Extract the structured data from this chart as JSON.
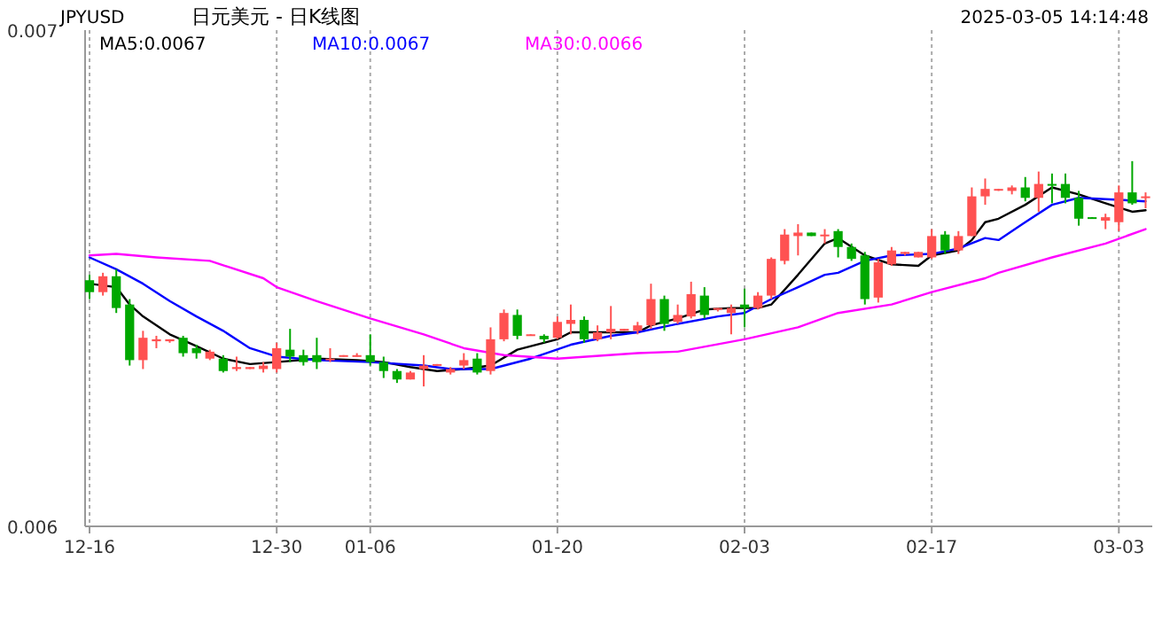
{
  "chart_data": {
    "type": "candlestick",
    "title": "日元美元 - 日K线图",
    "subtitle": "JPYUSD",
    "annotations": [
      "2025-03-05 14:14:48"
    ],
    "x": [
      "2024-12-16",
      "2024-12-17",
      "2024-12-18",
      "2024-12-19",
      "2024-12-20",
      "2024-12-21",
      "2024-12-22",
      "2024-12-23",
      "2024-12-24",
      "2024-12-25",
      "2024-12-26",
      "2024-12-27",
      "2024-12-28",
      "2024-12-29",
      "2024-12-30",
      "2024-12-31",
      "2025-01-01",
      "2025-01-02",
      "2025-01-03",
      "2025-01-04",
      "2025-01-05",
      "2025-01-06",
      "2025-01-07",
      "2025-01-08",
      "2025-01-09",
      "2025-01-10",
      "2025-01-11",
      "2025-01-12",
      "2025-01-13",
      "2025-01-14",
      "2025-01-15",
      "2025-01-16",
      "2025-01-17",
      "2025-01-18",
      "2025-01-19",
      "2025-01-20",
      "2025-01-21",
      "2025-01-22",
      "2025-01-23",
      "2025-01-24",
      "2025-01-25",
      "2025-01-26",
      "2025-01-27",
      "2025-01-28",
      "2025-01-29",
      "2025-01-30",
      "2025-01-31",
      "2025-02-01",
      "2025-02-02",
      "2025-02-03",
      "2025-02-04",
      "2025-02-05",
      "2025-02-06",
      "2025-02-07",
      "2025-02-08",
      "2025-02-09",
      "2025-02-10",
      "2025-02-11",
      "2025-02-12",
      "2025-02-13",
      "2025-02-14",
      "2025-02-15",
      "2025-02-16",
      "2025-02-17",
      "2025-02-18",
      "2025-02-19",
      "2025-02-20",
      "2025-02-21",
      "2025-02-22",
      "2025-02-23",
      "2025-02-24",
      "2025-02-25",
      "2025-02-26",
      "2025-02-27",
      "2025-02-28",
      "2025-03-01",
      "2025-03-02",
      "2025-03-03",
      "2025-03-04",
      "2025-03-05"
    ],
    "ohlc": [
      [
        0.006496,
        0.006507,
        0.006458,
        0.006472
      ],
      [
        0.006472,
        0.006511,
        0.006465,
        0.006504
      ],
      [
        0.006504,
        0.006518,
        0.00643,
        0.00644
      ],
      [
        0.006447,
        0.006458,
        0.006324,
        0.006335
      ],
      [
        0.006335,
        0.006394,
        0.006317,
        0.00638
      ],
      [
        0.006373,
        0.006384,
        0.006359,
        0.006377
      ],
      [
        0.006373,
        0.006377,
        0.00637,
        0.006377
      ],
      [
        0.00638,
        0.006384,
        0.006342,
        0.006349
      ],
      [
        0.006359,
        0.006366,
        0.006338,
        0.006349
      ],
      [
        0.006338,
        0.006356,
        0.006335,
        0.006352
      ],
      [
        0.006338,
        0.006345,
        0.00631,
        0.006313
      ],
      [
        0.006317,
        0.006342,
        0.006313,
        0.006321
      ],
      [
        0.006317,
        0.006321,
        0.006317,
        0.006321
      ],
      [
        0.006317,
        0.006331,
        0.00631,
        0.006324
      ],
      [
        0.006317,
        0.00637,
        0.00631,
        0.006359
      ],
      [
        0.006356,
        0.006398,
        0.006331,
        0.006342
      ],
      [
        0.006345,
        0.006356,
        0.006324,
        0.006331
      ],
      [
        0.006345,
        0.00638,
        0.006317,
        0.006331
      ],
      [
        0.006335,
        0.006359,
        0.006331,
        0.006338
      ],
      [
        0.006342,
        0.006345,
        0.006342,
        0.006345
      ],
      [
        0.006345,
        0.006349,
        0.006342,
        0.006345
      ],
      [
        0.006345,
        0.006387,
        0.006324,
        0.006331
      ],
      [
        0.006331,
        0.006342,
        0.006299,
        0.006313
      ],
      [
        0.006313,
        0.006317,
        0.006289,
        0.006296
      ],
      [
        0.006296,
        0.006313,
        0.006296,
        0.00631
      ],
      [
        0.006317,
        0.006345,
        0.006282,
        0.006324
      ],
      [
        0.006324,
        0.006327,
        0.006324,
        0.006327
      ],
      [
        0.00631,
        0.006321,
        0.006306,
        0.006317
      ],
      [
        0.006324,
        0.006349,
        0.006317,
        0.006335
      ],
      [
        0.006338,
        0.006349,
        0.006306,
        0.00631
      ],
      [
        0.006313,
        0.006401,
        0.006306,
        0.006377
      ],
      [
        0.006377,
        0.006437,
        0.006373,
        0.00643
      ],
      [
        0.006426,
        0.006437,
        0.006377,
        0.006384
      ],
      [
        0.006384,
        0.006387,
        0.006384,
        0.006387
      ],
      [
        0.006384,
        0.006387,
        0.00637,
        0.006377
      ],
      [
        0.00638,
        0.006423,
        0.006377,
        0.006412
      ],
      [
        0.006408,
        0.006447,
        0.006387,
        0.006416
      ],
      [
        0.006416,
        0.006423,
        0.00637,
        0.006377
      ],
      [
        0.006377,
        0.006405,
        0.006373,
        0.006391
      ],
      [
        0.006391,
        0.006444,
        0.006377,
        0.006398
      ],
      [
        0.006394,
        0.006398,
        0.006394,
        0.006398
      ],
      [
        0.006394,
        0.006412,
        0.006387,
        0.006405
      ],
      [
        0.006405,
        0.006489,
        0.006398,
        0.006458
      ],
      [
        0.006458,
        0.006465,
        0.006394,
        0.006408
      ],
      [
        0.006412,
        0.006447,
        0.006408,
        0.006426
      ],
      [
        0.006423,
        0.006493,
        0.006419,
        0.006468
      ],
      [
        0.006465,
        0.006482,
        0.006419,
        0.006426
      ],
      [
        0.006437,
        0.00644,
        0.006433,
        0.00644
      ],
      [
        0.00643,
        0.006447,
        0.006387,
        0.00644
      ],
      [
        0.006447,
        0.006479,
        0.006401,
        0.00644
      ],
      [
        0.00644,
        0.006472,
        0.006437,
        0.006465
      ],
      [
        0.006465,
        0.006542,
        0.006458,
        0.006539
      ],
      [
        0.006535,
        0.006599,
        0.006528,
        0.006588
      ],
      [
        0.006585,
        0.006609,
        0.006546,
        0.006592
      ],
      [
        0.006592,
        0.006592,
        0.006585,
        0.006585
      ],
      [
        0.006585,
        0.006599,
        0.00657,
        0.006588
      ],
      [
        0.006595,
        0.006599,
        0.006542,
        0.006563
      ],
      [
        0.006563,
        0.00657,
        0.006535,
        0.006539
      ],
      [
        0.006546,
        0.006553,
        0.006447,
        0.006458
      ],
      [
        0.006461,
        0.006539,
        0.006451,
        0.006532
      ],
      [
        0.006528,
        0.006563,
        0.006525,
        0.006556
      ],
      [
        0.006549,
        0.006553,
        0.006546,
        0.006553
      ],
      [
        0.006542,
        0.006553,
        0.006542,
        0.006553
      ],
      [
        0.006542,
        0.006599,
        0.006539,
        0.006585
      ],
      [
        0.006588,
        0.006595,
        0.006549,
        0.006556
      ],
      [
        0.006556,
        0.006595,
        0.006549,
        0.006585
      ],
      [
        0.006585,
        0.006683,
        0.006585,
        0.006665
      ],
      [
        0.006665,
        0.006701,
        0.006648,
        0.00668
      ],
      [
        0.00668,
        0.00668,
        0.006676,
        0.00668
      ],
      [
        0.006676,
        0.006687,
        0.006669,
        0.006683
      ],
      [
        0.006683,
        0.006704,
        0.006655,
        0.006662
      ],
      [
        0.006662,
        0.006715,
        0.006634,
        0.00669
      ],
      [
        0.00669,
        0.006711,
        0.006651,
        0.006687
      ],
      [
        0.00669,
        0.006711,
        0.006651,
        0.006662
      ],
      [
        0.006662,
        0.006676,
        0.006606,
        0.00662
      ],
      [
        0.006623,
        0.006623,
        0.00662,
        0.00662
      ],
      [
        0.006616,
        0.00663,
        0.006599,
        0.006623
      ],
      [
        0.006613,
        0.006687,
        0.006595,
        0.006673
      ],
      [
        0.006673,
        0.006736,
        0.006648,
        0.006651
      ],
      [
        0.006662,
        0.006673,
        0.006641,
        0.006665
      ]
    ],
    "colors": [
      "#00a800",
      "#ff5252",
      "#00a800",
      "#00a800",
      "#ff5252",
      "#ff5252",
      "#ff5252",
      "#00a800",
      "#00a800",
      "#ff5252",
      "#00a800",
      "#ff5252",
      "#ff5252",
      "#ff5252",
      "#ff5252",
      "#00a800",
      "#00a800",
      "#00a800",
      "#ff5252",
      "#ff5252",
      "#ff5252",
      "#00a800",
      "#00a800",
      "#00a800",
      "#ff5252",
      "#ff5252",
      "#ff5252",
      "#ff5252",
      "#ff5252",
      "#00a800",
      "#ff5252",
      "#ff5252",
      "#00a800",
      "#ff5252",
      "#00a800",
      "#ff5252",
      "#ff5252",
      "#00a800",
      "#ff5252",
      "#ff5252",
      "#ff5252",
      "#ff5252",
      "#ff5252",
      "#00a800",
      "#ff5252",
      "#ff5252",
      "#00a800",
      "#ff5252",
      "#ff5252",
      "#00a800",
      "#ff5252",
      "#ff5252",
      "#ff5252",
      "#ff5252",
      "#00a800",
      "#ff5252",
      "#00a800",
      "#00a800",
      "#00a800",
      "#ff5252",
      "#ff5252",
      "#ff5252",
      "#ff5252",
      "#ff5252",
      "#00a800",
      "#ff5252",
      "#ff5252",
      "#ff5252",
      "#ff5252",
      "#ff5252",
      "#00a800",
      "#ff5252",
      "#00a800",
      "#00a800",
      "#00a800",
      "#00a800",
      "#ff5252",
      "#ff5252",
      "#00a800",
      "#ff5252"
    ],
    "series": [
      {
        "type": "line",
        "name": "MA5:0.0067",
        "color": "#000000",
        "x": [
          "2024-12-16",
          "2024-12-18",
          "2024-12-19",
          "2024-12-20",
          "2024-12-22",
          "2024-12-24",
          "2024-12-26",
          "2024-12-28",
          "2024-12-30",
          "2025-01-02",
          "2025-01-05",
          "2025-01-07",
          "2025-01-09",
          "2025-01-11",
          "2025-01-13",
          "2025-01-15",
          "2025-01-17",
          "2025-01-20",
          "2025-01-21",
          "2025-01-23",
          "2025-01-26",
          "2025-01-27",
          "2025-01-29",
          "2025-01-31",
          "2025-02-02",
          "2025-02-04",
          "2025-02-05",
          "2025-02-07",
          "2025-02-09",
          "2025-02-10",
          "2025-02-12",
          "2025-02-14",
          "2025-02-16",
          "2025-02-17",
          "2025-02-19",
          "2025-02-20",
          "2025-02-21",
          "2025-02-22",
          "2025-02-24",
          "2025-02-26",
          "2025-02-28",
          "2025-03-02",
          "2025-03-04",
          "2025-03-05"
        ],
        "values": [
          0.006489,
          0.006482,
          0.006447,
          0.006423,
          0.006387,
          0.006363,
          0.006338,
          0.006327,
          0.006331,
          0.006338,
          0.006335,
          0.006331,
          0.006321,
          0.006313,
          0.006317,
          0.006324,
          0.006356,
          0.006377,
          0.006391,
          0.006391,
          0.006391,
          0.006405,
          0.006419,
          0.006437,
          0.00644,
          0.00644,
          0.006447,
          0.006507,
          0.00657,
          0.006581,
          0.006546,
          0.006528,
          0.006525,
          0.006546,
          0.006556,
          0.006577,
          0.006613,
          0.00662,
          0.006648,
          0.006683,
          0.006669,
          0.006651,
          0.006634,
          0.006637
        ]
      },
      {
        "type": "line",
        "name": "MA10:0.0067",
        "color": "#0000ff",
        "x": [
          "2024-12-16",
          "2024-12-18",
          "2024-12-20",
          "2024-12-22",
          "2024-12-24",
          "2024-12-26",
          "2024-12-28",
          "2024-12-30",
          "2025-01-02",
          "2025-01-06",
          "2025-01-10",
          "2025-01-12",
          "2025-01-15",
          "2025-01-18",
          "2025-01-21",
          "2025-01-24",
          "2025-01-26",
          "2025-01-29",
          "2025-02-01",
          "2025-02-03",
          "2025-02-05",
          "2025-02-07",
          "2025-02-09",
          "2025-02-10",
          "2025-02-12",
          "2025-02-14",
          "2025-02-17",
          "2025-02-19",
          "2025-02-21",
          "2025-02-22",
          "2025-02-24",
          "2025-02-26",
          "2025-02-28",
          "2025-03-03",
          "2025-03-05"
        ],
        "values": [
          0.006542,
          0.006518,
          0.006489,
          0.006454,
          0.006423,
          0.006394,
          0.006359,
          0.006342,
          0.006335,
          0.006331,
          0.006324,
          0.006317,
          0.006317,
          0.006338,
          0.006366,
          0.006384,
          0.006391,
          0.006408,
          0.006423,
          0.00643,
          0.006458,
          0.006482,
          0.006507,
          0.006511,
          0.006535,
          0.006546,
          0.006549,
          0.00656,
          0.006581,
          0.006577,
          0.006613,
          0.006648,
          0.006662,
          0.006658,
          0.006655
        ]
      },
      {
        "type": "line",
        "name": "MA30:0.0066",
        "color": "#ff00ff",
        "x": [
          "2024-12-16",
          "2024-12-18",
          "2024-12-21",
          "2024-12-25",
          "2024-12-29",
          "2024-12-30",
          "2025-01-02",
          "2025-01-06",
          "2025-01-10",
          "2025-01-13",
          "2025-01-16",
          "2025-01-20",
          "2025-01-26",
          "2025-01-29",
          "2025-02-03",
          "2025-02-07",
          "2025-02-10",
          "2025-02-14",
          "2025-02-17",
          "2025-02-21",
          "2025-02-22",
          "2025-02-26",
          "2025-03-02",
          "2025-03-05"
        ],
        "values": [
          0.006546,
          0.006549,
          0.006542,
          0.006535,
          0.0065,
          0.006482,
          0.006454,
          0.006419,
          0.006387,
          0.006359,
          0.006345,
          0.006338,
          0.006349,
          0.006352,
          0.006377,
          0.006401,
          0.00643,
          0.006447,
          0.006472,
          0.0065,
          0.006511,
          0.006542,
          0.00657,
          0.006599
        ]
      }
    ],
    "xlim": [
      "2024-12-15T16:00",
      "2025-03-05T12:00"
    ],
    "xticks": [
      {
        "value": "2024-12-16",
        "label": "12-16"
      },
      {
        "value": "2024-12-30",
        "label": "12-30"
      },
      {
        "value": "2025-01-06",
        "label": "01-06"
      },
      {
        "value": "2025-01-20",
        "label": "01-20"
      },
      {
        "value": "2025-02-03",
        "label": "02-03"
      },
      {
        "value": "2025-02-17",
        "label": "02-17"
      },
      {
        "value": "2025-03-03",
        "label": "03-03"
      }
    ],
    "ylim": [
      0.006,
      0.007
    ],
    "yticks": [
      0.006,
      0.007
    ],
    "grid": "x",
    "legend": "top",
    "line_style": "solid"
  }
}
